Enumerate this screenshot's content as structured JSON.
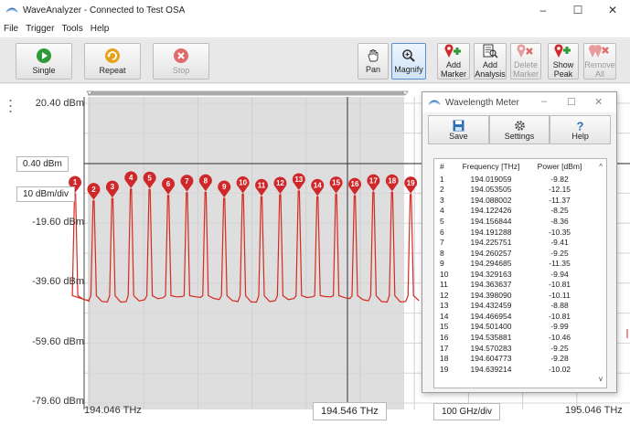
{
  "window": {
    "title": "WaveAnalyzer - Connected to Test OSA",
    "minimize": "–",
    "maximize": "☐",
    "close": "✕"
  },
  "menu": [
    "File",
    "Trigger",
    "Tools",
    "Help"
  ],
  "toolbar": {
    "single": "Single",
    "repeat": "Repeat",
    "stop": "Stop",
    "pan": "Pan",
    "magnify": "Magnify",
    "add_marker": [
      "Add",
      "Marker"
    ],
    "add_analysis": [
      "Add",
      "Analysis"
    ],
    "delete_marker": [
      "Delete",
      "Marker"
    ],
    "show_peak": [
      "Show",
      "Peak"
    ],
    "remove_all": [
      "Remove",
      "All"
    ]
  },
  "axis": {
    "y_labels": [
      "20.40 dBm",
      "-19.60 dBm",
      "-39.60 dBm",
      "-59.60 dBm",
      "-79.60 dBm"
    ],
    "ref_level": "0.40 dBm",
    "scale": "10 dBm/div",
    "x_start": "194.046 THz",
    "x_center": "194.546 THz",
    "x_span": "100 GHz/div",
    "x_end": "195.046 THz"
  },
  "colors": {
    "trace": "#d42a20",
    "marker": "#d0282a",
    "accent": "#5b8fc9"
  },
  "chart_data": {
    "type": "line",
    "x_unit": "THz",
    "y_unit": "dBm",
    "xlim": [
      194.046,
      195.046
    ],
    "ylim": [
      -79.6,
      20.4
    ],
    "peaks": [
      [
        194.019059,
        -9.82
      ],
      [
        194.053505,
        -12.15
      ],
      [
        194.088002,
        -11.37
      ],
      [
        194.122426,
        -8.25
      ],
      [
        194.156844,
        -8.36
      ],
      [
        194.191288,
        -10.35
      ],
      [
        194.225751,
        -9.41
      ],
      [
        194.260257,
        -9.25
      ],
      [
        194.294685,
        -11.35
      ],
      [
        194.329163,
        -9.94
      ],
      [
        194.363637,
        -10.81
      ],
      [
        194.39809,
        -10.11
      ],
      [
        194.432459,
        -8.88
      ],
      [
        194.466954,
        -10.81
      ],
      [
        194.5014,
        -9.99
      ],
      [
        194.535881,
        -10.46
      ],
      [
        194.570283,
        -9.25
      ],
      [
        194.604773,
        -9.28
      ],
      [
        194.639214,
        -10.02
      ]
    ],
    "noise_floor": -45
  },
  "meter": {
    "title": "Wavelength Meter",
    "save": "Save",
    "settings": "Settings",
    "help": "Help",
    "headers": [
      "#",
      "Frequency [THz]",
      "Power [dBm]"
    ],
    "rows": [
      [
        "1",
        "194.019059",
        "-9.82"
      ],
      [
        "2",
        "194.053505",
        "-12.15"
      ],
      [
        "3",
        "194.088002",
        "-11.37"
      ],
      [
        "4",
        "194.122426",
        "-8.25"
      ],
      [
        "5",
        "194.156844",
        "-8.36"
      ],
      [
        "6",
        "194.191288",
        "-10.35"
      ],
      [
        "7",
        "194.225751",
        "-9.41"
      ],
      [
        "8",
        "194.260257",
        "-9.25"
      ],
      [
        "9",
        "194.294685",
        "-11.35"
      ],
      [
        "10",
        "194.329163",
        "-9.94"
      ],
      [
        "11",
        "194.363637",
        "-10.81"
      ],
      [
        "12",
        "194.398090",
        "-10.11"
      ],
      [
        "13",
        "194.432459",
        "-8.88"
      ],
      [
        "14",
        "194.466954",
        "-10.81"
      ],
      [
        "15",
        "194.501400",
        "-9.99"
      ],
      [
        "16",
        "194.535881",
        "-10.46"
      ],
      [
        "17",
        "194.570283",
        "-9.25"
      ],
      [
        "18",
        "194.604773",
        "-9.28"
      ],
      [
        "19",
        "194.639214",
        "-10.02"
      ]
    ]
  }
}
